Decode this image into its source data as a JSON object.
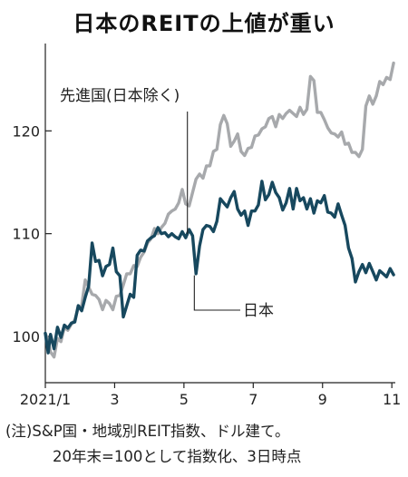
{
  "title": "日本のREITの上値が重い",
  "notes": {
    "line1": "(注)S&P国・地域別REIT指数、ドル建て。",
    "line2": "20年末=100として指数化、3日時点"
  },
  "chart_data": {
    "type": "line",
    "title": "日本のREITの上値が重い",
    "xlabel": "",
    "ylabel": "",
    "x_ticks": [
      "2021/1",
      "3",
      "5",
      "7",
      "9",
      "11"
    ],
    "y_ticks": [
      100,
      110,
      120
    ],
    "xlim": [
      1.0,
      11.1
    ],
    "ylim": [
      95.5,
      128.5
    ],
    "grid": false,
    "colors": {
      "developed_ex_japan": "#a7a9ac",
      "japan": "#17485e"
    },
    "series": [
      {
        "key": "developed_ex_japan",
        "name": "先進国(日本除く)",
        "x": [
          1.0,
          1.08,
          1.15,
          1.25,
          1.35,
          1.45,
          1.55,
          1.65,
          1.75,
          1.85,
          1.95,
          2.05,
          2.15,
          2.25,
          2.35,
          2.45,
          2.55,
          2.65,
          2.75,
          2.85,
          2.95,
          3.05,
          3.15,
          3.25,
          3.35,
          3.45,
          3.55,
          3.65,
          3.75,
          3.85,
          3.95,
          4.05,
          4.15,
          4.25,
          4.35,
          4.45,
          4.55,
          4.65,
          4.75,
          4.85,
          4.95,
          5.05,
          5.15,
          5.25,
          5.35,
          5.45,
          5.55,
          5.65,
          5.75,
          5.85,
          5.95,
          6.05,
          6.15,
          6.25,
          6.35,
          6.45,
          6.55,
          6.65,
          6.75,
          6.85,
          6.95,
          7.05,
          7.15,
          7.25,
          7.35,
          7.45,
          7.55,
          7.65,
          7.75,
          7.85,
          7.95,
          8.05,
          8.15,
          8.25,
          8.35,
          8.45,
          8.55,
          8.65,
          8.75,
          8.85,
          8.95,
          9.05,
          9.15,
          9.25,
          9.35,
          9.45,
          9.55,
          9.65,
          9.75,
          9.85,
          9.95,
          10.05,
          10.15,
          10.25,
          10.35,
          10.45,
          10.55,
          10.65,
          10.75,
          10.85,
          10.95,
          11.05
        ],
        "values": [
          100.3,
          99.6,
          98.5,
          98.0,
          99.8,
          99.5,
          100.9,
          100.6,
          101.2,
          101.6,
          102.8,
          103.0,
          105.5,
          104.8,
          104.1,
          104.0,
          103.6,
          102.6,
          103.5,
          103.2,
          102.6,
          103.9,
          104.0,
          105.0,
          106.1,
          106.1,
          106.9,
          106.8,
          107.7,
          108.2,
          109.1,
          109.5,
          110.5,
          110.0,
          110.6,
          111.0,
          111.9,
          112.2,
          112.4,
          113.0,
          114.3,
          112.9,
          112.7,
          114.0,
          115.3,
          115.8,
          115.4,
          116.6,
          116.6,
          118.0,
          118.2,
          120.6,
          121.5,
          120.7,
          118.5,
          119.0,
          119.7,
          118.0,
          117.6,
          118.3,
          118.4,
          119.5,
          119.6,
          120.2,
          120.4,
          121.2,
          121.4,
          120.4,
          121.6,
          121.2,
          121.7,
          122.0,
          121.7,
          121.4,
          122.3,
          121.6,
          122.1,
          125.3,
          124.9,
          121.8,
          121.8,
          121.1,
          120.3,
          119.8,
          119.7,
          119.4,
          119.9,
          118.7,
          118.8,
          117.9,
          117.9,
          117.5,
          118.2,
          122.4,
          123.4,
          122.6,
          123.4,
          124.8,
          124.5,
          125.2,
          125.0,
          126.6
        ]
      },
      {
        "key": "japan",
        "name": "日本",
        "x": [
          1.0,
          1.08,
          1.15,
          1.25,
          1.35,
          1.45,
          1.55,
          1.65,
          1.75,
          1.85,
          1.95,
          2.05,
          2.15,
          2.25,
          2.35,
          2.45,
          2.55,
          2.65,
          2.75,
          2.85,
          2.95,
          3.05,
          3.15,
          3.25,
          3.35,
          3.45,
          3.55,
          3.65,
          3.75,
          3.85,
          3.95,
          4.05,
          4.15,
          4.25,
          4.35,
          4.45,
          4.55,
          4.65,
          4.75,
          4.85,
          4.95,
          5.05,
          5.15,
          5.25,
          5.35,
          5.45,
          5.55,
          5.65,
          5.75,
          5.85,
          5.95,
          6.05,
          6.15,
          6.25,
          6.35,
          6.45,
          6.55,
          6.65,
          6.75,
          6.85,
          6.95,
          7.05,
          7.15,
          7.25,
          7.35,
          7.45,
          7.55,
          7.65,
          7.75,
          7.85,
          7.95,
          8.05,
          8.15,
          8.25,
          8.35,
          8.45,
          8.55,
          8.65,
          8.75,
          8.85,
          8.95,
          9.05,
          9.15,
          9.25,
          9.35,
          9.45,
          9.55,
          9.65,
          9.75,
          9.85,
          9.95,
          10.05,
          10.15,
          10.25,
          10.35,
          10.45,
          10.55,
          10.65,
          10.75,
          10.85,
          10.95,
          11.05
        ],
        "values": [
          100.3,
          98.4,
          100.2,
          98.8,
          100.9,
          99.9,
          101.1,
          100.8,
          101.3,
          101.4,
          103.0,
          102.5,
          103.8,
          104.9,
          109.1,
          107.3,
          107.4,
          105.9,
          106.8,
          107.0,
          108.6,
          106.3,
          105.9,
          101.9,
          103.0,
          104.1,
          103.8,
          107.9,
          108.4,
          108.3,
          109.3,
          109.6,
          109.8,
          110.6,
          110.0,
          110.1,
          109.7,
          110.0,
          109.7,
          109.5,
          110.2,
          109.6,
          110.4,
          109.8,
          106.1,
          108.8,
          110.4,
          110.8,
          110.7,
          110.2,
          111.2,
          113.4,
          113.0,
          112.6,
          113.5,
          114.1,
          112.4,
          111.8,
          112.2,
          110.8,
          112.2,
          112.2,
          112.8,
          115.1,
          113.3,
          113.8,
          115.0,
          114.0,
          113.5,
          112.3,
          113.0,
          114.4,
          112.4,
          114.4,
          113.2,
          113.5,
          112.4,
          113.4,
          112.0,
          113.2,
          113.0,
          113.7,
          112.1,
          112.0,
          111.6,
          112.9,
          111.8,
          110.8,
          108.6,
          107.6,
          105.3,
          106.3,
          107.0,
          106.2,
          107.1,
          106.3,
          105.5,
          106.4,
          106.1,
          105.8,
          106.6,
          106.0
        ]
      }
    ],
    "annotations": [
      {
        "key": "developed_ex_japan",
        "text": "先進国(日本除く)",
        "x": 5.1,
        "y": 109.8
      },
      {
        "key": "japan",
        "text": "日本",
        "x": 5.3,
        "y": 106.3
      }
    ]
  }
}
